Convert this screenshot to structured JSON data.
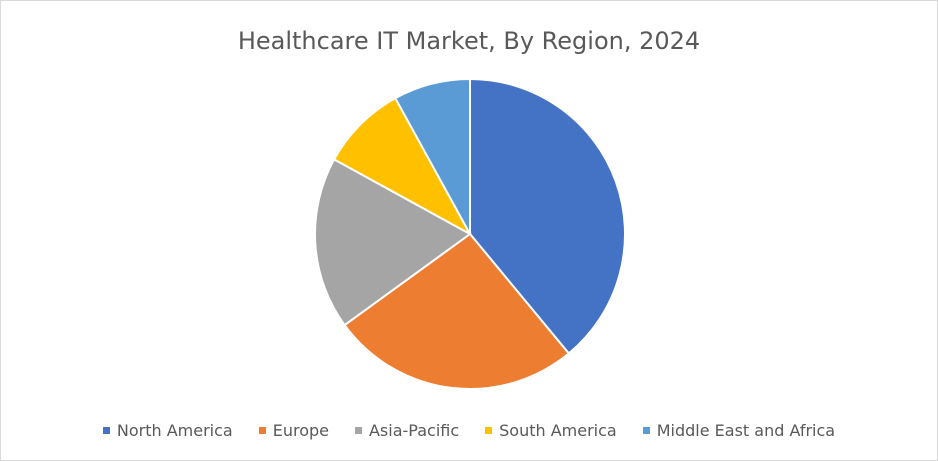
{
  "chart_data": {
    "type": "pie",
    "title": "Healthcare IT Market, By Region, 2024",
    "categories": [
      "North America",
      "Europe",
      "Asia-Pacific",
      "South America",
      "Middle East and Africa"
    ],
    "values": [
      39,
      26,
      18,
      9,
      8
    ],
    "colors": [
      "#4472c4",
      "#ed7d31",
      "#a5a5a5",
      "#ffc000",
      "#5b9bd5"
    ],
    "legend_position": "bottom"
  }
}
